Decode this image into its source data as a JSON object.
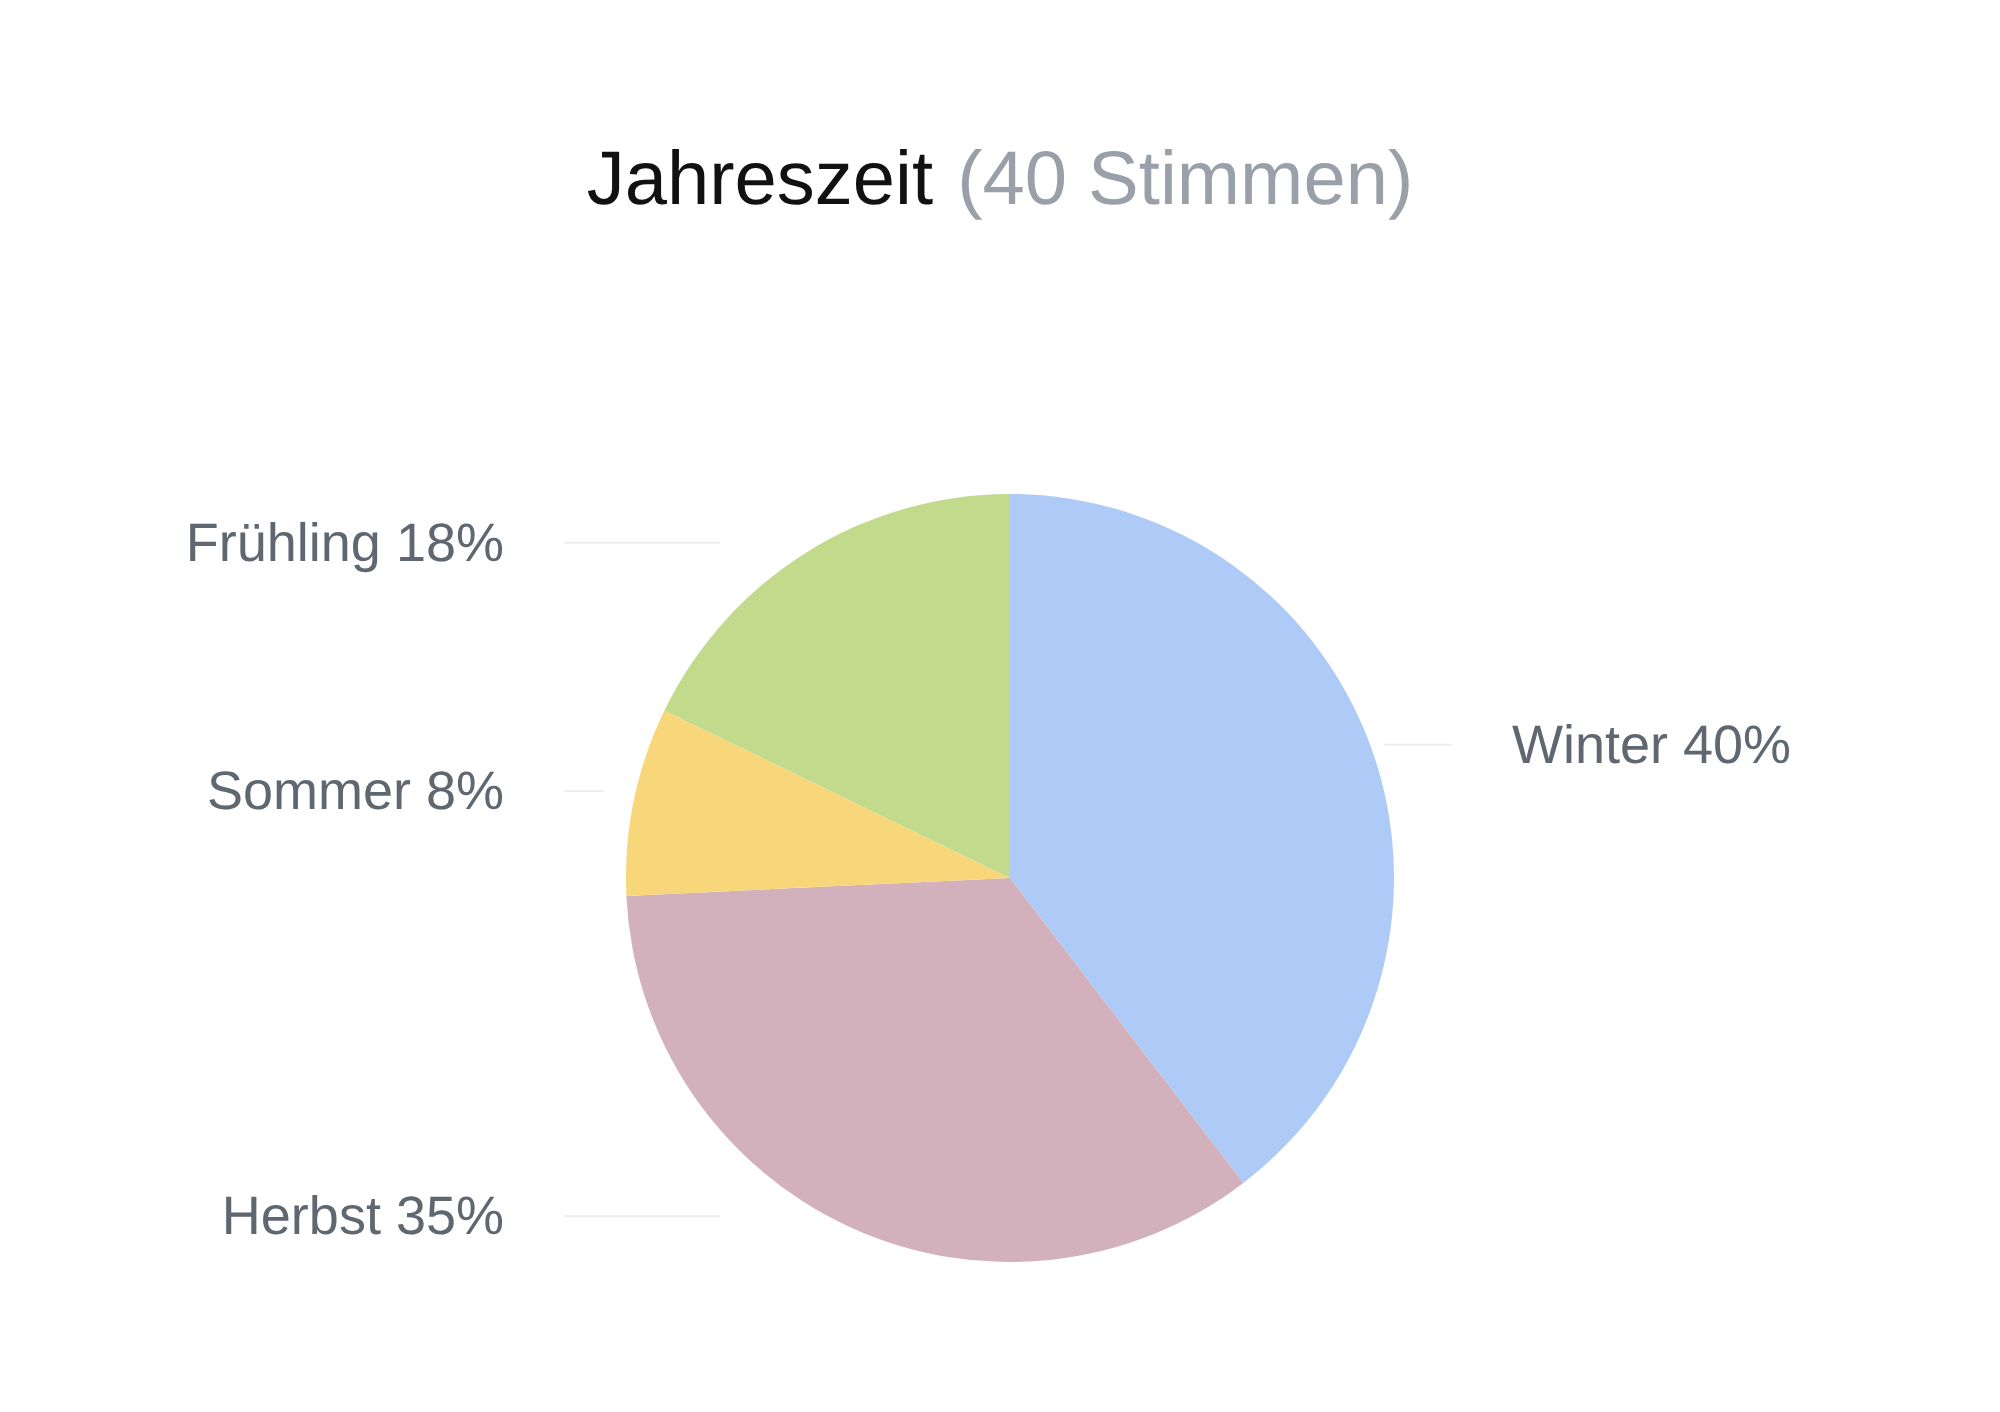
{
  "chart_data": {
    "type": "pie",
    "title": "Jahreszeit",
    "subtitle": "(40 Stimmen)",
    "categories": [
      "Winter",
      "Herbst",
      "Sommer",
      "Frühling"
    ],
    "values": [
      40,
      35,
      8,
      18
    ],
    "value_labels": [
      "40%",
      "35%",
      "8%",
      "18%"
    ],
    "colors": [
      "#aecbf7",
      "#d3b1bc",
      "#f7d77a",
      "#c2da8c"
    ]
  }
}
